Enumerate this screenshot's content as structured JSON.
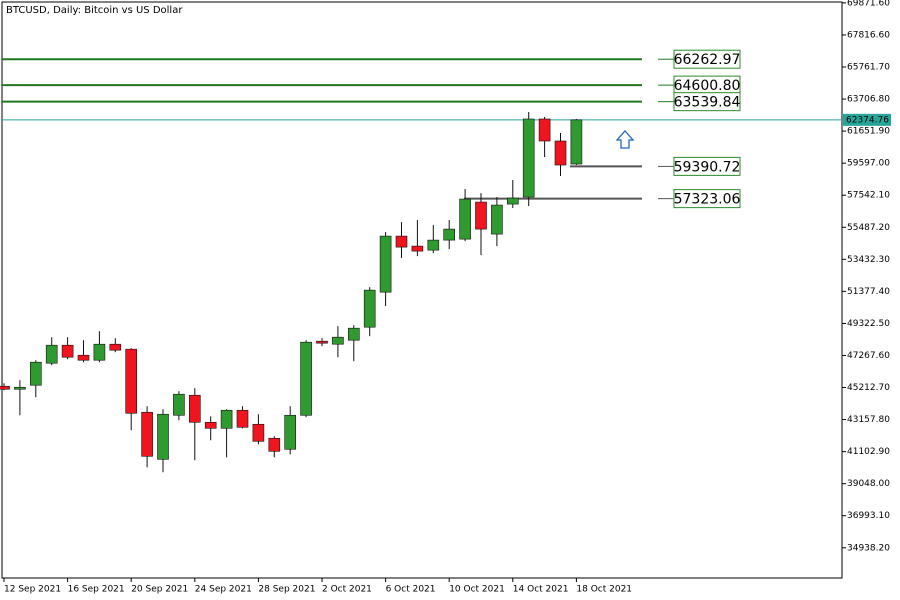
{
  "chart_data": {
    "type": "candlestick",
    "title": "BTCUSD, Daily:  Bitcoin vs US Dollar",
    "categories": [
      "12 Sep 2021",
      null,
      null,
      null,
      "16 Sep 2021",
      null,
      null,
      null,
      "20 Sep 2021",
      null,
      null,
      null,
      "24 Sep 2021",
      null,
      null,
      null,
      "28 Sep 2021",
      null,
      null,
      null,
      "2 Oct 2021",
      null,
      null,
      null,
      "6 Oct 2021",
      null,
      null,
      null,
      "10 Oct 2021",
      null,
      null,
      null,
      "14 Oct 2021",
      null,
      null,
      null,
      "18 Oct 2021"
    ],
    "open": [
      45295,
      45103,
      45360,
      46771,
      47926,
      47284,
      46963,
      47990,
      47670,
      43627,
      40611,
      43434,
      44718,
      42985,
      42600,
      43755,
      42857,
      41959,
      41253,
      43434,
      48183,
      47990,
      48247,
      49081,
      51327,
      54921,
      54279,
      54022,
      54664,
      54728,
      57103,
      55049,
      56974,
      57424,
      62429,
      61017,
      59541
    ],
    "high": [
      45487,
      45680,
      46963,
      48440,
      48440,
      48247,
      48824,
      48376,
      47734,
      44012,
      43819,
      44975,
      45167,
      43370,
      43819,
      44012,
      43499,
      42087,
      44012,
      48247,
      48376,
      49145,
      49210,
      51648,
      55178,
      55819,
      55948,
      55627,
      55948,
      57937,
      57680,
      57424,
      58514,
      62878,
      62557,
      61530,
      62429
    ],
    "low": [
      45039,
      43434,
      44590,
      46643,
      47028,
      46835,
      46835,
      47477,
      42472,
      40098,
      39777,
      43114,
      40547,
      41830,
      40739,
      42600,
      41574,
      40739,
      40932,
      43306,
      47862,
      47156,
      46900,
      48504,
      50429,
      53509,
      53637,
      53830,
      54087,
      54600,
      53702,
      54279,
      56718,
      56846,
      59990,
      58771,
      59477
    ],
    "close": [
      45103,
      45231,
      46835,
      47926,
      47156,
      46963,
      47990,
      47605,
      43563,
      40803,
      43499,
      44782,
      42985,
      42600,
      43755,
      42664,
      41766,
      41124,
      43434,
      48119,
      48055,
      48440,
      49017,
      51456,
      54921,
      54215,
      53958,
      54664,
      55370,
      57295,
      55370,
      56910,
      57359,
      62429,
      61017,
      59477,
      62374.76
    ],
    "up_color": "#2f9a2f",
    "down_color": "#f0141e",
    "wick_color": "#111111",
    "ylim": [
      33000,
      69930
    ],
    "yticks": [
      {
        "value": 69871.6,
        "label": "69871.60"
      },
      {
        "value": 67816.6,
        "label": "67816.60"
      },
      {
        "value": 65761.7,
        "label": "65761.70"
      },
      {
        "value": 63706.8,
        "label": "63706.80"
      },
      {
        "value": 61651.9,
        "label": "61651.90"
      },
      {
        "value": 59597,
        "label": "59597.00"
      },
      {
        "value": 57542.1,
        "label": "57542.10"
      },
      {
        "value": 55487.2,
        "label": "55487.20"
      },
      {
        "value": 53432.3,
        "label": "53432.30"
      },
      {
        "value": 51377.4,
        "label": "51377.40"
      },
      {
        "value": 49322.5,
        "label": "49322.50"
      },
      {
        "value": 47267.6,
        "label": "47267.60"
      },
      {
        "value": 45212.7,
        "label": "45212.70"
      },
      {
        "value": 43157.8,
        "label": "43157.80"
      },
      {
        "value": 41102.9,
        "label": "41102.90"
      },
      {
        "value": 39048,
        "label": "39048.00"
      },
      {
        "value": 36993.1,
        "label": "36993.10"
      },
      {
        "value": 34938.2,
        "label": "34938.20"
      }
    ],
    "levels": [
      {
        "value": 66262.97,
        "color": "#1f7a1f"
      },
      {
        "value": 64600.8,
        "label": "64600.80",
        "color": "#1f7a1f"
      },
      {
        "value": 63539.84,
        "color": "#1f7a1f"
      },
      {
        "value": 59390.72,
        "color": "#555555"
      },
      {
        "value": 57323.06,
        "color": "#555555"
      }
    ],
    "level_label_color": "#2a8a2a",
    "current_price": 62374.76,
    "current_price_color": "#26a69a"
  }
}
